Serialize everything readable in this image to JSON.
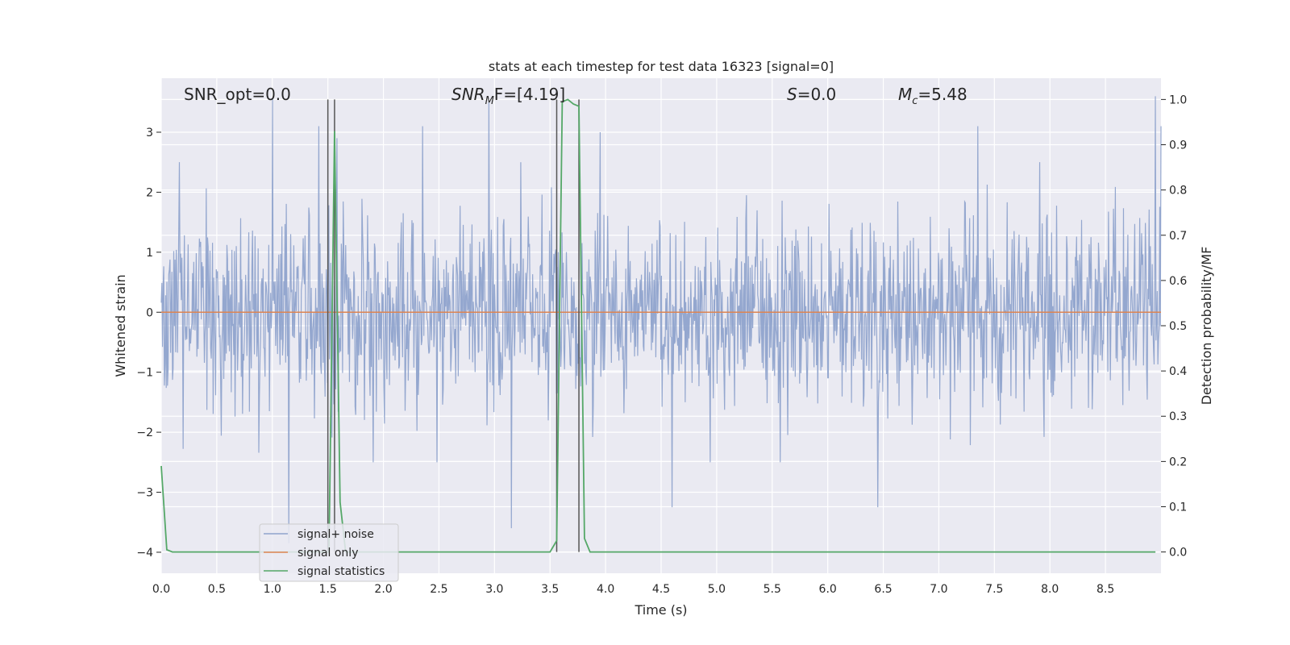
{
  "chart_data": {
    "type": "line",
    "title": "stats at each timestep for test data 16323 [signal=0]",
    "xlabel": "Time (s)",
    "ylabel": "Whitened strain",
    "y2label": "Detection probability/MF",
    "xlim": [
      0.0,
      9.0
    ],
    "ylim": [
      -4.35,
      3.9
    ],
    "y2lim": [
      -0.047,
      1.047
    ],
    "xticks": [
      "0.0",
      "0.5",
      "1.0",
      "1.5",
      "2.0",
      "2.5",
      "3.0",
      "3.5",
      "4.0",
      "4.5",
      "5.0",
      "5.5",
      "6.0",
      "6.5",
      "7.0",
      "7.5",
      "8.0",
      "8.5"
    ],
    "xtick_values": [
      0.0,
      0.5,
      1.0,
      1.5,
      2.0,
      2.5,
      3.0,
      3.5,
      4.0,
      4.5,
      5.0,
      5.5,
      6.0,
      6.5,
      7.0,
      7.5,
      8.0,
      8.5
    ],
    "yticks": [
      "3",
      "2",
      "1",
      "0",
      "−1",
      "−2",
      "−3",
      "−4"
    ],
    "ytick_values": [
      3,
      2,
      1,
      0,
      -1,
      -2,
      -3,
      -4
    ],
    "y2ticks": [
      "1.0",
      "0.9",
      "0.8",
      "0.7",
      "0.6",
      "0.5",
      "0.4",
      "0.3",
      "0.2",
      "0.1",
      "0.0"
    ],
    "y2tick_values": [
      1.0,
      0.9,
      0.8,
      0.7,
      0.6,
      0.5,
      0.4,
      0.3,
      0.2,
      0.1,
      0.0
    ],
    "grid": true,
    "legend_position": "lower-left",
    "annotations": {
      "snr_opt": "SNR_opt=0.0",
      "snr_mf_label": "SNR",
      "snr_mf_sub": "M",
      "snr_mf_rest": "F=[4.19]",
      "s_label": "S",
      "s_rest": "=0.0",
      "mc_label": "M",
      "mc_sub": "c",
      "mc_rest": "=5.48"
    },
    "series": [
      {
        "name": "signal+ noise",
        "color": "#8fa3cc",
        "note_values": "dense whitened noise, roughly within [-3.6, 3.6]",
        "noise_std": 0.8,
        "n_samples": 1600,
        "spikes": [
          [
            1.0,
            3.55
          ],
          [
            1.15,
            -3.85
          ],
          [
            1.42,
            3.1
          ],
          [
            1.58,
            2.9
          ],
          [
            2.35,
            3.1
          ],
          [
            2.95,
            3.5
          ],
          [
            3.15,
            -3.6
          ],
          [
            3.95,
            3.0
          ],
          [
            4.6,
            -3.25
          ],
          [
            6.45,
            -3.25
          ],
          [
            7.35,
            3.1
          ],
          [
            8.95,
            3.6
          ],
          [
            9.0,
            3.1
          ]
        ]
      },
      {
        "name": "signal only",
        "color": "#dd8452",
        "x": [
          0.0,
          9.0
        ],
        "y": [
          0.0,
          0.0
        ]
      },
      {
        "name": "signal statistics",
        "color": "#55a868",
        "x": [
          0.0,
          0.05,
          0.1,
          0.15,
          1.5,
          1.51,
          1.56,
          1.61,
          1.66,
          3.5,
          3.56,
          3.61,
          3.66,
          3.71,
          3.76,
          3.81,
          3.86,
          8.95
        ],
        "y2": [
          0.19,
          0.005,
          0.0,
          0.0,
          0.0,
          0.0,
          0.93,
          0.11,
          0.0,
          0.0,
          0.025,
          0.995,
          1.0,
          0.99,
          0.985,
          0.03,
          0.0,
          0.0
        ]
      }
    ],
    "vlines": {
      "color": "#555555",
      "x": [
        1.5,
        1.56,
        3.56,
        3.76
      ],
      "y2_range": [
        0.0,
        1.0
      ]
    }
  }
}
